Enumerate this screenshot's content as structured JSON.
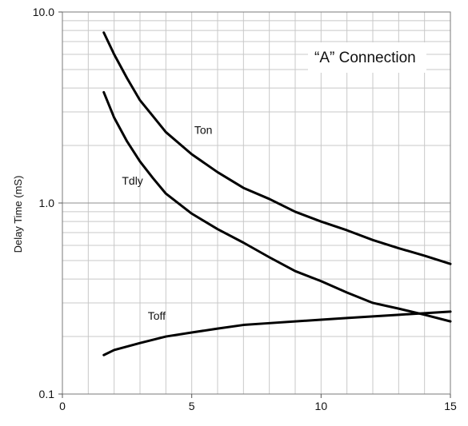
{
  "chart_data": {
    "type": "line",
    "title": "",
    "xlabel": "",
    "ylabel": "Delay Time (mS)",
    "xlim": [
      0,
      15
    ],
    "ylim": [
      0.1,
      10.0
    ],
    "y_scale": "log",
    "grid": true,
    "annotation": "“A” Connection",
    "x_ticks": [
      0,
      5,
      10,
      15
    ],
    "y_ticks": [
      0.1,
      1.0,
      10.0
    ],
    "x_tick_labels": [
      "0",
      "5",
      "10",
      "15"
    ],
    "y_tick_labels": [
      "0.1",
      "1.0",
      "10.0"
    ],
    "series": [
      {
        "name": "Ton",
        "color": "#000000",
        "x": [
          1.6,
          2,
          2.5,
          3,
          3.5,
          4,
          5,
          6,
          7,
          8,
          9,
          10,
          11,
          12,
          13,
          14,
          15
        ],
        "y": [
          7.8,
          6.0,
          4.5,
          3.45,
          2.85,
          2.35,
          1.8,
          1.45,
          1.2,
          1.05,
          0.9,
          0.8,
          0.72,
          0.64,
          0.58,
          0.53,
          0.48
        ]
      },
      {
        "name": "Tdly",
        "color": "#000000",
        "x": [
          1.6,
          2,
          2.5,
          3,
          3.5,
          4,
          5,
          6,
          7,
          8,
          9,
          10,
          11,
          12,
          13,
          14,
          15
        ],
        "y": [
          3.8,
          2.8,
          2.1,
          1.65,
          1.35,
          1.12,
          0.88,
          0.73,
          0.62,
          0.52,
          0.44,
          0.39,
          0.34,
          0.3,
          0.28,
          0.26,
          0.24
        ]
      },
      {
        "name": "Toff",
        "color": "#000000",
        "x": [
          1.6,
          2,
          3,
          4,
          5,
          6,
          7,
          8,
          9,
          10,
          11,
          12,
          13,
          14,
          15
        ],
        "y": [
          0.16,
          0.17,
          0.185,
          0.2,
          0.21,
          0.22,
          0.23,
          0.235,
          0.24,
          0.245,
          0.25,
          0.255,
          0.26,
          0.265,
          0.27
        ]
      }
    ]
  }
}
